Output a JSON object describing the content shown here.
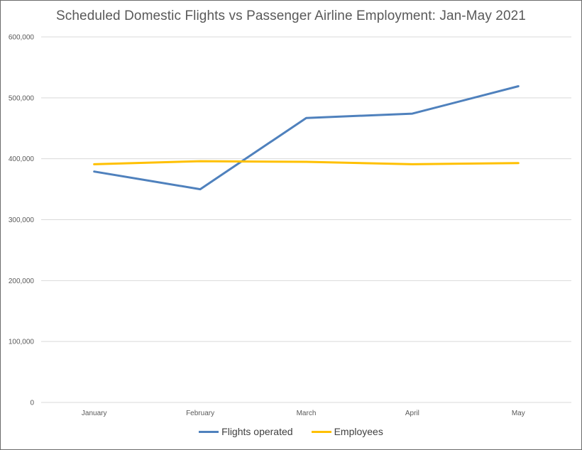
{
  "chart_data": {
    "type": "line",
    "title": "Scheduled Domestic Flights vs Passenger Airline Employment: Jan-May 2021",
    "categories": [
      "January",
      "February",
      "March",
      "April",
      "May"
    ],
    "series": [
      {
        "name": "Flights operated",
        "color": "#4f81bd",
        "values": [
          379000,
          350000,
          467000,
          474000,
          519000
        ]
      },
      {
        "name": "Employees",
        "color": "#ffc000",
        "values": [
          391000,
          396000,
          395000,
          391000,
          393000
        ]
      }
    ],
    "ylim": [
      0,
      600000
    ],
    "yticks": [
      0,
      100000,
      200000,
      300000,
      400000,
      500000,
      600000
    ],
    "ytick_labels": [
      "0",
      "100,000",
      "200,000",
      "300,000",
      "400,000",
      "500,000",
      "600,000"
    ],
    "grid": true,
    "legend_position": "bottom"
  }
}
